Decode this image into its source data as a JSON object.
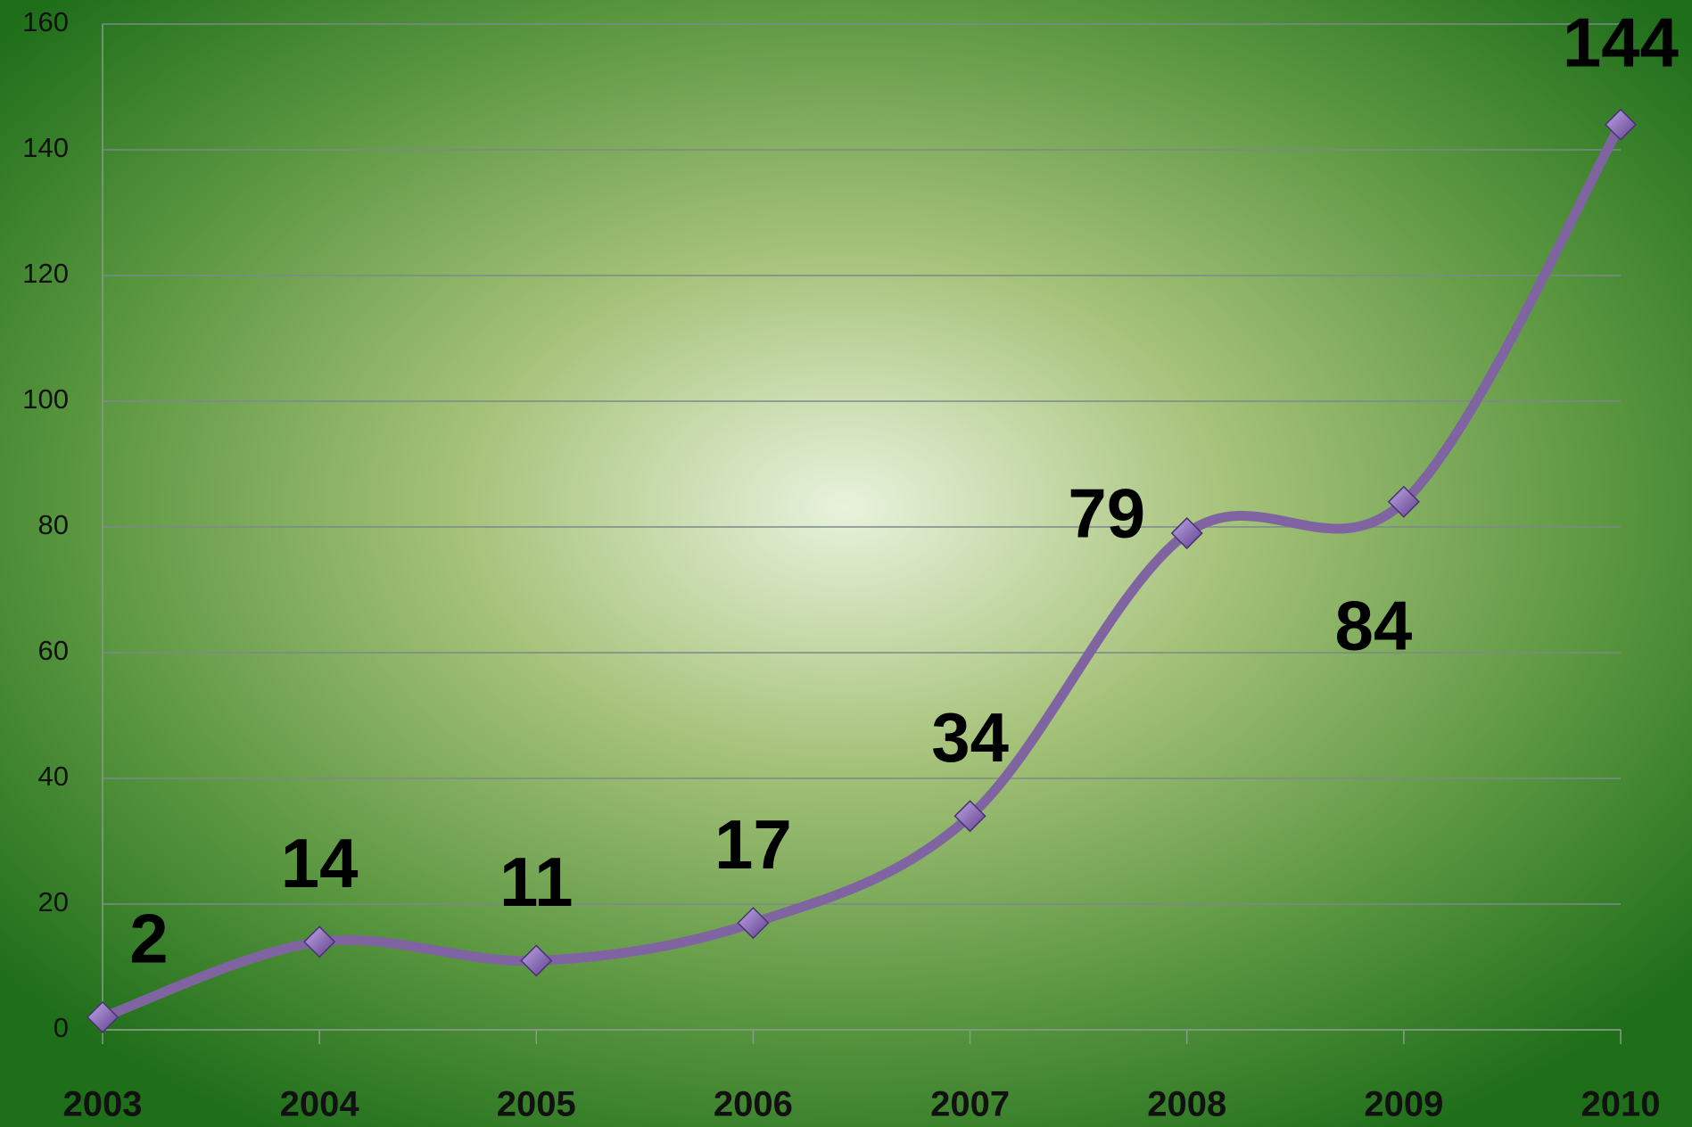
{
  "chart_data": {
    "type": "line",
    "categories": [
      "2003",
      "2004",
      "2005",
      "2006",
      "2007",
      "2008",
      "2009",
      "2010"
    ],
    "series": [
      {
        "name": null,
        "color": "#8064a2",
        "values": [
          2,
          14,
          11,
          17,
          34,
          79,
          84,
          144
        ]
      }
    ],
    "ylim": [
      0,
      160
    ],
    "yticks": [
      0,
      20,
      40,
      60,
      80,
      100,
      120,
      140,
      160
    ],
    "grid": true
  }
}
